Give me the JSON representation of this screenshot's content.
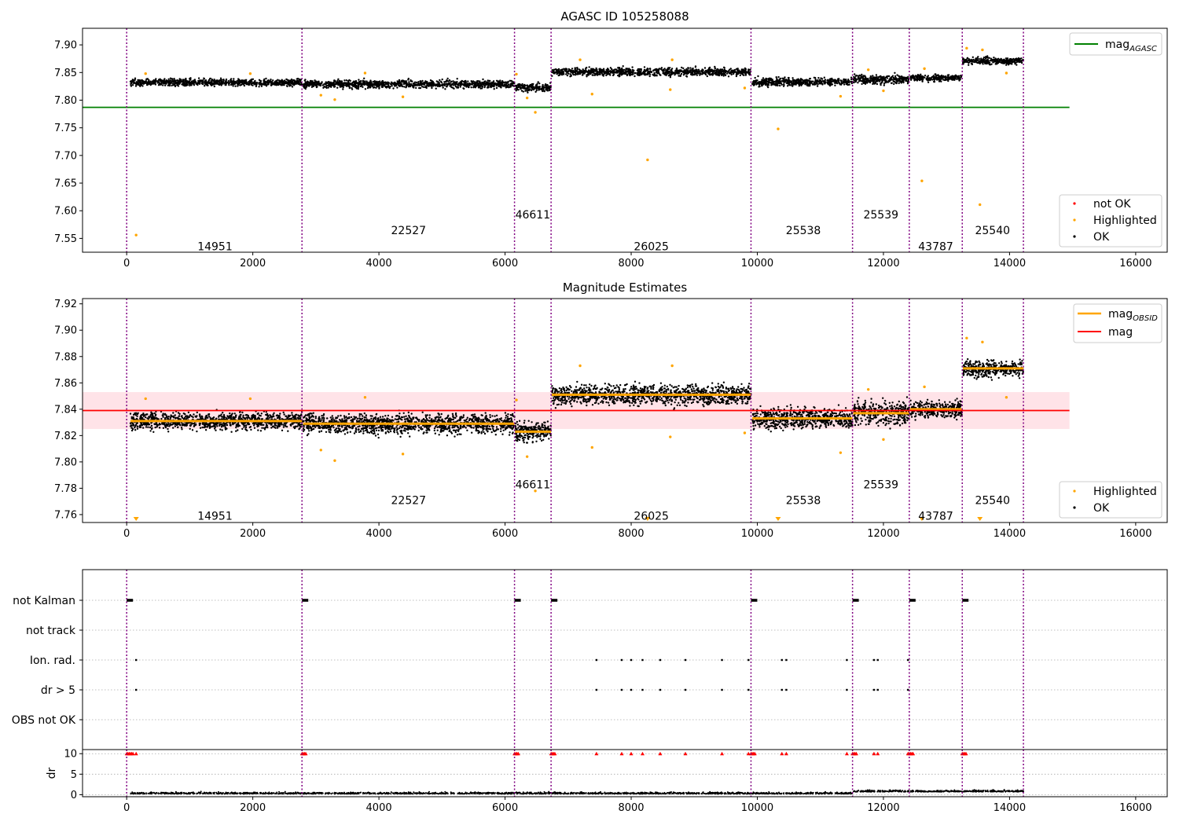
{
  "chart_data": [
    {
      "type": "scatter",
      "title": "AGASC ID 105258088",
      "xlabel": "",
      "ylabel": "",
      "xlim": [
        -700,
        16500
      ],
      "ylim": [
        7.525,
        7.93
      ],
      "xticks": [
        0,
        2000,
        4000,
        6000,
        8000,
        10000,
        12000,
        14000,
        16000
      ],
      "xtick_labels": [
        "0",
        "2000",
        "4000",
        "6000",
        "8000",
        "10000",
        "12000",
        "14000",
        "16000"
      ],
      "yticks": [
        7.55,
        7.6,
        7.65,
        7.7,
        7.75,
        7.8,
        7.85,
        7.9
      ],
      "ytick_labels": [
        "7.55",
        "7.60",
        "7.65",
        "7.70",
        "7.75",
        "7.80",
        "7.85",
        "7.90"
      ],
      "boundaries": [
        0,
        2780,
        6150,
        6730,
        9900,
        11510,
        12410,
        13250,
        14220
      ],
      "segments": [
        {
          "x0": 60,
          "x1": 2780,
          "level": 7.832,
          "spread": 0.006
        },
        {
          "x0": 2800,
          "x1": 6150,
          "level": 7.829,
          "spread": 0.007
        },
        {
          "x0": 6160,
          "x1": 6730,
          "level": 7.823,
          "spread": 0.007
        },
        {
          "x0": 6740,
          "x1": 9900,
          "level": 7.851,
          "spread": 0.007
        },
        {
          "x0": 9920,
          "x1": 11510,
          "level": 7.833,
          "spread": 0.007
        },
        {
          "x0": 11520,
          "x1": 12410,
          "level": 7.837,
          "spread": 0.008
        },
        {
          "x0": 12420,
          "x1": 13250,
          "level": 7.84,
          "spread": 0.006
        },
        {
          "x0": 13260,
          "x1": 14220,
          "level": 7.871,
          "spread": 0.006
        }
      ],
      "obsid_labels": [
        {
          "text": "14951",
          "x": 1400,
          "y": 7.536
        },
        {
          "text": "22527",
          "x": 4470,
          "y": 7.565
        },
        {
          "text": "46611",
          "x": 6440,
          "y": 7.593
        },
        {
          "text": "26025",
          "x": 8320,
          "y": 7.536
        },
        {
          "text": "25538",
          "x": 10730,
          "y": 7.565
        },
        {
          "text": "25539",
          "x": 11960,
          "y": 7.593
        },
        {
          "text": "43787",
          "x": 12830,
          "y": 7.536
        },
        {
          "text": "25540",
          "x": 13730,
          "y": 7.565
        }
      ],
      "highlighted_points": [
        [
          150,
          7.556
        ],
        [
          10330,
          7.748
        ],
        [
          8260,
          7.692
        ],
        [
          12610,
          7.654
        ],
        [
          13530,
          7.611
        ],
        [
          6480,
          7.778
        ],
        [
          3300,
          7.801
        ],
        [
          4380,
          7.806
        ],
        [
          7380,
          7.811
        ],
        [
          9800,
          7.822
        ],
        [
          8620,
          7.819
        ],
        [
          11320,
          7.807
        ],
        [
          6350,
          7.804
        ],
        [
          300,
          7.848
        ],
        [
          1960,
          7.848
        ],
        [
          3780,
          7.849
        ],
        [
          6180,
          7.847
        ],
        [
          7190,
          7.873
        ],
        [
          8650,
          7.873
        ],
        [
          13320,
          7.894
        ],
        [
          13570,
          7.891
        ],
        [
          13950,
          7.849
        ],
        [
          3080,
          7.809
        ],
        [
          12000,
          7.817
        ],
        [
          11760,
          7.855
        ],
        [
          12650,
          7.857
        ]
      ],
      "horizontal_lines": [
        {
          "name": "mag_AGASC",
          "y": 7.787,
          "x0": -700,
          "x1": 14950,
          "color": "#008000"
        }
      ],
      "legend_top": {
        "entries": [
          {
            "label": "mag",
            "subscript": "AGASC",
            "color": "#008000"
          }
        ],
        "position": "top-right"
      },
      "legend_bottom": {
        "entries": [
          {
            "label": "not OK",
            "color": "#ff0000"
          },
          {
            "label": "Highlighted",
            "color": "#ffa500"
          },
          {
            "label": "OK",
            "color": "#000000"
          }
        ],
        "position": "bottom-right"
      }
    },
    {
      "type": "scatter",
      "title": "Magnitude Estimates",
      "xlabel": "",
      "ylabel": "",
      "xlim": [
        -700,
        16500
      ],
      "ylim": [
        7.754,
        7.924
      ],
      "xticks": [
        0,
        2000,
        4000,
        6000,
        8000,
        10000,
        12000,
        14000,
        16000
      ],
      "xtick_labels": [
        "0",
        "2000",
        "4000",
        "6000",
        "8000",
        "10000",
        "12000",
        "14000",
        "16000"
      ],
      "yticks": [
        7.76,
        7.78,
        7.8,
        7.82,
        7.84,
        7.86,
        7.88,
        7.9,
        7.92
      ],
      "ytick_labels": [
        "7.76",
        "7.78",
        "7.80",
        "7.82",
        "7.84",
        "7.86",
        "7.88",
        "7.90",
        "7.92"
      ],
      "mag": 7.839,
      "mag_band": [
        7.825,
        7.853
      ],
      "obsid_means": [
        7.831,
        7.829,
        7.823,
        7.851,
        7.833,
        7.837,
        7.84,
        7.871
      ],
      "obsid_labels": [
        {
          "text": "14951",
          "x": 1400,
          "y": 7.759
        },
        {
          "text": "22527",
          "x": 4470,
          "y": 7.771
        },
        {
          "text": "46611",
          "x": 6440,
          "y": 7.783
        },
        {
          "text": "26025",
          "x": 8320,
          "y": 7.759
        },
        {
          "text": "25538",
          "x": 10730,
          "y": 7.771
        },
        {
          "text": "25539",
          "x": 11960,
          "y": 7.783
        },
        {
          "text": "43787",
          "x": 12830,
          "y": 7.759
        },
        {
          "text": "25540",
          "x": 13730,
          "y": 7.771
        }
      ],
      "offscale_markers_x": [
        150,
        8260,
        10330,
        12610,
        13530
      ],
      "legend_top": {
        "entries": [
          {
            "label": "mag",
            "subscript": "OBSID",
            "color": "#ffa500"
          },
          {
            "label": "mag",
            "color": "#ff0000"
          }
        ],
        "position": "top-right"
      },
      "legend_bottom": {
        "entries": [
          {
            "label": "Highlighted",
            "color": "#ffa500"
          },
          {
            "label": "OK",
            "color": "#000000"
          }
        ],
        "position": "bottom-right"
      }
    },
    {
      "type": "scatter",
      "title": "",
      "xlabel": "",
      "ylabel": "",
      "xlim": [
        -700,
        16500
      ],
      "flag_rows": [
        "not Kalman",
        "not track",
        "Ion. rad.",
        "dr > 5",
        "OBS not OK"
      ],
      "not_kalman_x": [
        0,
        2780,
        6150,
        6730,
        9900,
        11510,
        12410,
        13250
      ],
      "ion_rad_x": [
        150,
        7450,
        7850,
        8000,
        8180,
        8460,
        8860,
        9440,
        9860,
        10390,
        10460,
        11420,
        11850,
        11910,
        12390
      ],
      "xticks": [
        0,
        2000,
        4000,
        6000,
        8000,
        10000,
        12000,
        14000,
        16000
      ],
      "xtick_labels": [
        "0",
        "2000",
        "4000",
        "6000",
        "8000",
        "10000",
        "12000",
        "14000",
        "16000"
      ]
    },
    {
      "type": "scatter",
      "title": "",
      "xlabel": "",
      "ylabel": "dr",
      "xlim": [
        -700,
        16500
      ],
      "ylim": [
        -0.5,
        11
      ],
      "yticks": [
        0,
        5,
        10
      ],
      "ytick_labels": [
        "0",
        "5",
        "10"
      ],
      "xticks": [
        0,
        2000,
        4000,
        6000,
        8000,
        10000,
        12000,
        14000,
        16000
      ],
      "xtick_labels": [
        "0",
        "2000",
        "4000",
        "6000",
        "8000",
        "10000",
        "12000",
        "14000",
        "16000"
      ],
      "clipped_value": 10,
      "clipped_x": [
        0,
        20,
        40,
        60,
        80,
        100,
        150,
        2780,
        2800,
        2820,
        2840,
        6150,
        6170,
        6190,
        6210,
        6730,
        6750,
        6770,
        6790,
        7450,
        7850,
        8000,
        8180,
        8460,
        8860,
        9440,
        9860,
        9900,
        9920,
        9940,
        9960,
        10390,
        10460,
        11420,
        11510,
        11530,
        11550,
        11570,
        11850,
        11910,
        12390,
        12410,
        12430,
        12450,
        12470,
        13250,
        13270,
        13290,
        13310
      ]
    }
  ]
}
